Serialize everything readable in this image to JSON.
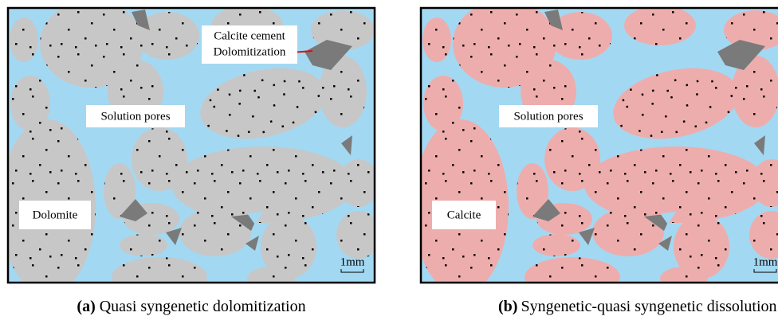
{
  "panels": [
    {
      "labels": {
        "cement": "Calcite cement",
        "process": "Dolomitization",
        "pores": "Solution pores",
        "mineral": "Dolomite",
        "scale": "1mm"
      },
      "caption": {
        "letter": "(a)",
        "text": "Quasi syngenetic dolomitization"
      }
    },
    {
      "labels": {
        "pores": "Solution pores",
        "mineral": "Calcite",
        "scale": "1mm"
      },
      "caption": {
        "letter": "(b)",
        "text": "Syngenetic-quasi syngenetic dissolution"
      }
    }
  ]
}
